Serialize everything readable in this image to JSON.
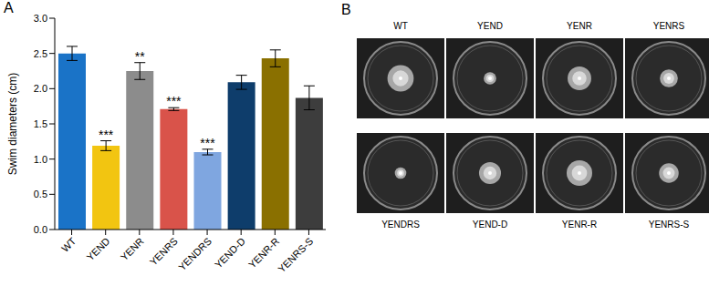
{
  "chart_data": {
    "type": "bar",
    "title": "A",
    "y_label": "Swim diameters (cm)",
    "categories": [
      "WT",
      "YEND",
      "YENR",
      "YENRS",
      "YENDRS",
      "YEND-D",
      "YENR-R",
      "YENRS-S"
    ],
    "values": [
      2.5,
      1.19,
      2.25,
      1.71,
      1.1,
      2.09,
      2.43,
      1.87
    ],
    "errors": [
      0.1,
      0.07,
      0.12,
      0.02,
      0.04,
      0.1,
      0.12,
      0.17
    ],
    "annotations": [
      null,
      "***",
      "**",
      "***",
      "***",
      null,
      null,
      null
    ],
    "colors": [
      "#1a73c7",
      "#f2c511",
      "#8c8c8c",
      "#d9534a",
      "#7fa6e0",
      "#0e3d6b",
      "#8a7000",
      "#3d3d3d"
    ],
    "ylim": [
      0,
      3
    ],
    "yticks": [
      {
        "value": 0,
        "label": "0.0"
      },
      0.5,
      {
        "value": 1,
        "label": "1.0"
      },
      1.5,
      {
        "value": 2,
        "label": "2.0"
      },
      2.5,
      {
        "value": 3,
        "label": "3.0"
      }
    ],
    "grid": false
  },
  "photo": {
    "title": "B",
    "top_labels": [
      "WT",
      "YEND",
      "YENR",
      "YENRS"
    ],
    "bottom_labels": [
      "YENDRS",
      "YEND-D",
      "YENR-R",
      "YENRS-S"
    ]
  }
}
